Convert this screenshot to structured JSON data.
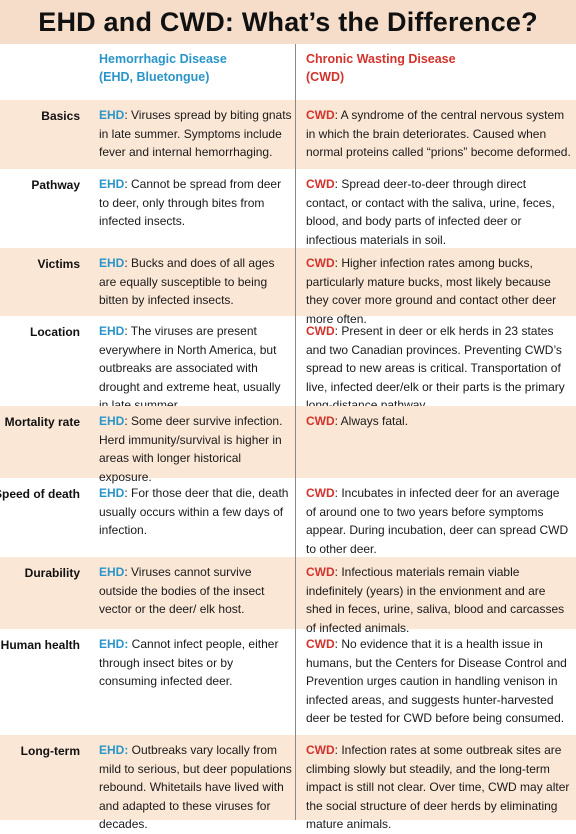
{
  "title": "EHD and CWD: What’s the Difference?",
  "columns": {
    "ehd": {
      "line1": "Hemorrhagic Disease",
      "line2": "(EHD, Bluetongue)"
    },
    "cwd": {
      "line1": "Chronic Wasting Disease",
      "line2": "(CWD)"
    }
  },
  "colors": {
    "title_bg": "#f5ddca",
    "row_shade": "#fbe7d6",
    "ehd": "#2a95c9",
    "cwd": "#d2332c"
  },
  "rows": [
    {
      "label": "Basics",
      "ehd_tag": "EHD",
      "ehd": ": Viruses spread by biting gnats in late summer. Symptoms include fever and internal hemorrhaging.",
      "cwd_tag": "CWD",
      "cwd": ": A syndrome of the central nervous system in which the brain deteriorates. Caused when normal proteins called “prions” become deformed."
    },
    {
      "label": "Pathway",
      "ehd_tag": "EHD",
      "ehd": ": Cannot be spread from deer to deer, only through bites from infected insects.",
      "cwd_tag": "CWD",
      "cwd": ": Spread deer-to-deer through direct contact, or contact with the saliva, urine, feces, blood, and body parts of infected deer or infectious materials in soil."
    },
    {
      "label": "Victims",
      "ehd_tag": "EHD",
      "ehd": ": Bucks and does of all ages are equally susceptible to being bitten by infected insects.",
      "cwd_tag": "CWD",
      "cwd": ": Higher infection rates among bucks, particularly mature bucks, most likely because they cover more ground and contact other deer more often."
    },
    {
      "label": "Location",
      "ehd_tag": "EHD",
      "ehd": ": The viruses are present everywhere in North America, but outbreaks are associated with drought and extreme heat, usually in late summer.",
      "cwd_tag": "CWD",
      "cwd": ": Present in deer or elk herds in 23 states and two Canadian provinces. Preventing CWD’s spread to new areas is critical. Transportation of live, infected deer/elk or their parts is the primary long-distance pathway."
    },
    {
      "label": "Mortality rate",
      "ehd_tag": "EHD",
      "ehd": ": Some deer survive infection. Herd immunity/survival is higher in areas with longer historical exposure.",
      "cwd_tag": "CWD",
      "cwd": ": Always fatal."
    },
    {
      "label": "Speed of death",
      "ehd_tag": "EHD",
      "ehd": ": For those deer that die, death usually occurs within a few days of infection.",
      "cwd_tag": "CWD",
      "cwd": ": Incubates in infected deer for an average of around one to two years before symptoms appear. During incubation, deer can spread CWD to other deer."
    },
    {
      "label": "Durability",
      "ehd_tag": "EHD",
      "ehd": ": Viruses cannot survive outside the bodies of the insect vector or the deer/ elk host.",
      "cwd_tag": "CWD",
      "cwd": ": Infectious materials remain viable indefinitely (years) in the envionment and are shed in feces, urine, saliva, blood and carcasses of infected animals."
    },
    {
      "label": "Human health",
      "ehd_tag": "EHD:",
      "ehd": " Cannot infect people, either through insect bites or by consuming infected deer.",
      "cwd_tag": "CWD",
      "cwd": ": No evidence that it is a health issue in humans, but the Centers for Disease Control and Prevention urges caution in handling venison in infected areas, and suggests hunter-harvested deer be tested for CWD before being consumed."
    },
    {
      "label": "Long-term",
      "ehd_tag": "EHD:",
      "ehd": " Outbreaks vary locally from mild to serious, but deer populations rebound. Whitetails have lived with and adapted to these viruses for decades.",
      "cwd_tag": "CWD",
      "cwd": ": Infection rates at some outbreak sites are climbing slowly but steadily, and the long-term impact is still not clear. Over time, CWD may alter the social structure of deer herds by eliminating mature animals."
    }
  ]
}
